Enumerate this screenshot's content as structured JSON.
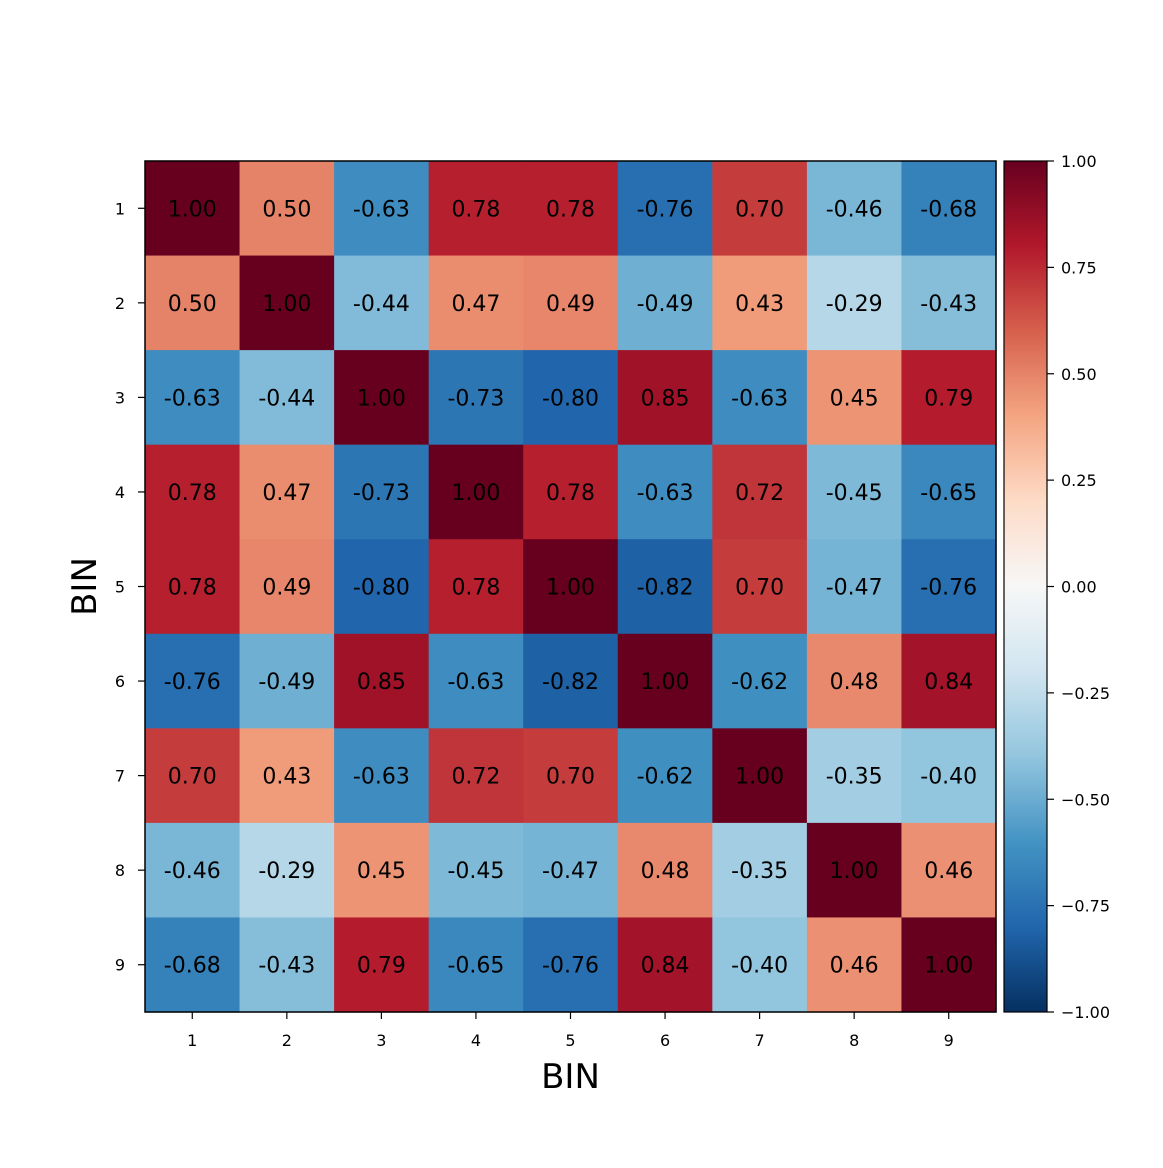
{
  "chart_data": {
    "type": "heatmap",
    "title": "",
    "xlabel": "BIN",
    "ylabel": "BIN",
    "x_categories": [
      "1",
      "2",
      "3",
      "4",
      "5",
      "6",
      "7",
      "8",
      "9"
    ],
    "y_categories": [
      "1",
      "2",
      "3",
      "4",
      "5",
      "6",
      "7",
      "8",
      "9"
    ],
    "values": [
      [
        1.0,
        0.5,
        -0.63,
        0.78,
        0.78,
        -0.76,
        0.7,
        -0.46,
        -0.68
      ],
      [
        0.5,
        1.0,
        -0.44,
        0.47,
        0.49,
        -0.49,
        0.43,
        -0.29,
        -0.43
      ],
      [
        -0.63,
        -0.44,
        1.0,
        -0.73,
        -0.8,
        0.85,
        -0.63,
        0.45,
        0.79
      ],
      [
        0.78,
        0.47,
        -0.73,
        1.0,
        0.78,
        -0.63,
        0.72,
        -0.45,
        -0.65
      ],
      [
        0.78,
        0.49,
        -0.8,
        0.78,
        1.0,
        -0.82,
        0.7,
        -0.47,
        -0.76
      ],
      [
        -0.76,
        -0.49,
        0.85,
        -0.63,
        -0.82,
        1.0,
        -0.62,
        0.48,
        0.84
      ],
      [
        0.7,
        0.43,
        -0.63,
        0.72,
        0.7,
        -0.62,
        1.0,
        -0.35,
        -0.4
      ],
      [
        -0.46,
        -0.29,
        0.45,
        -0.45,
        -0.47,
        0.48,
        -0.35,
        1.0,
        0.46
      ],
      [
        -0.68,
        -0.43,
        0.79,
        -0.65,
        -0.76,
        0.84,
        -0.4,
        0.46,
        1.0
      ]
    ],
    "value_format": "2 decimals",
    "colormap": "RdBu_r",
    "vmin": -1.0,
    "vmax": 1.0,
    "colorbar": {
      "ticks": [
        1.0,
        0.75,
        0.5,
        0.25,
        0.0,
        -0.25,
        -0.5,
        -0.75,
        -1.0
      ],
      "tick_labels": [
        "1.00",
        "0.75",
        "0.50",
        "0.25",
        "0.00",
        "−0.25",
        "−0.50",
        "−0.75",
        "−1.00"
      ],
      "placement": "right"
    },
    "grid": false,
    "legend": "none"
  }
}
